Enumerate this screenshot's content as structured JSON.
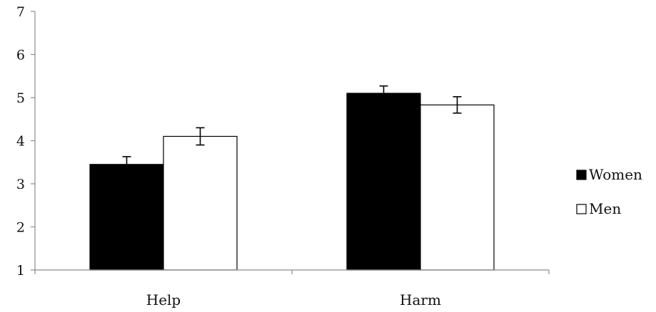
{
  "chart_data": {
    "type": "bar",
    "title": "",
    "xlabel": "",
    "ylabel": "",
    "categories": [
      "Help",
      "Harm"
    ],
    "ylim": [
      1,
      7
    ],
    "yticks": [
      "1",
      "2",
      "3",
      "4",
      "5",
      "6",
      "7"
    ],
    "grid": false,
    "legend_position": "right",
    "series": [
      {
        "name": "Women",
        "color": "#000000",
        "values": [
          3.45,
          5.1
        ],
        "errors": [
          0.18,
          0.17
        ]
      },
      {
        "name": "Men",
        "color": "#ffffff",
        "values": [
          4.1,
          4.83
        ],
        "errors": [
          0.2,
          0.19
        ]
      }
    ]
  }
}
